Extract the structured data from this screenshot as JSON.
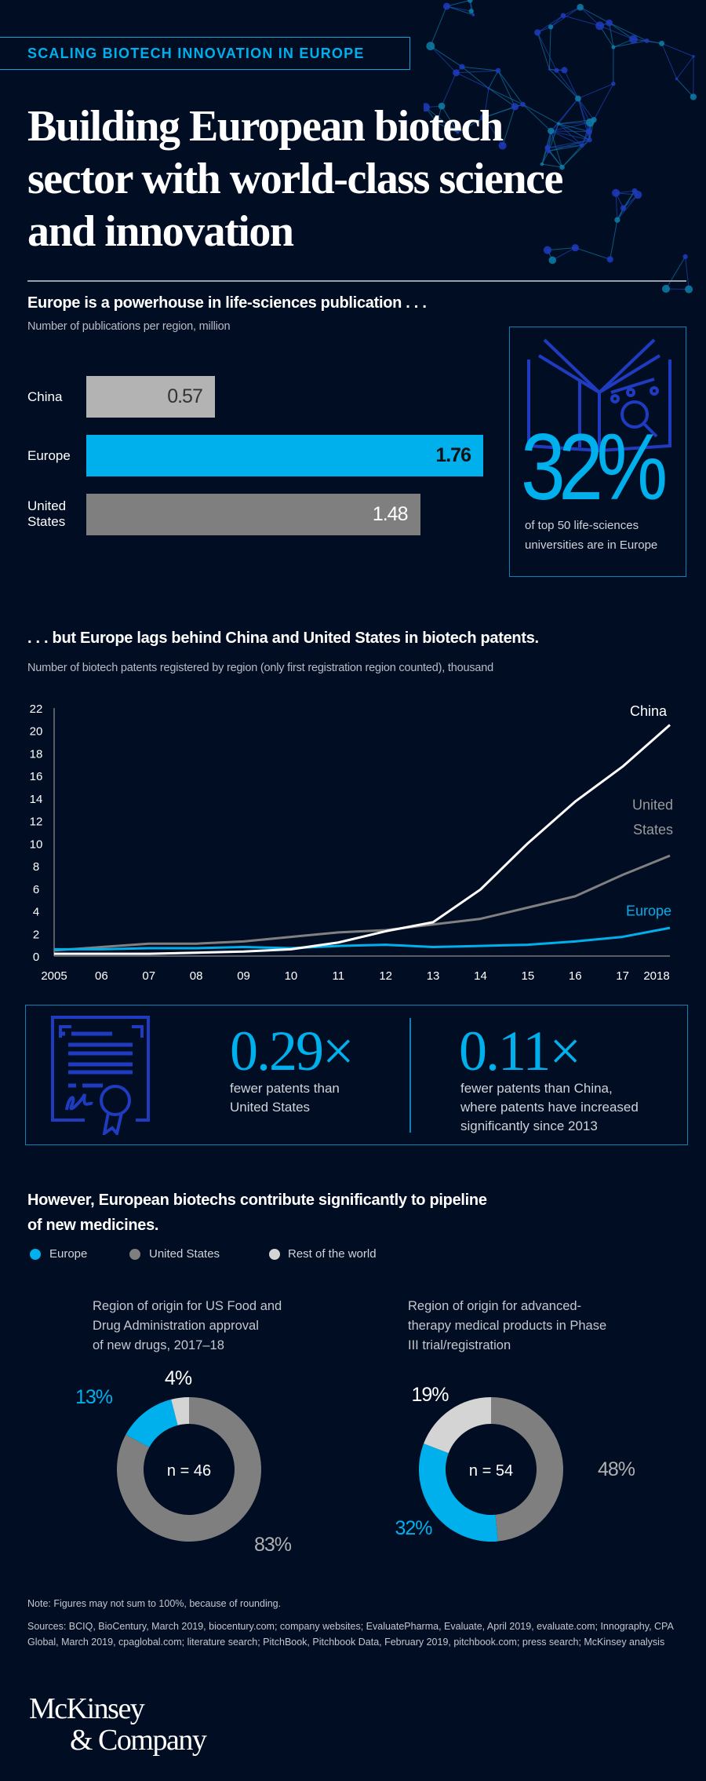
{
  "header": {
    "tag": "SCALING BIOTECH INNOVATION IN EUROPE",
    "title_lines": [
      "Building European biotech",
      "sector with world-class science",
      "and innovation"
    ]
  },
  "publications": {
    "heading": "Europe is a powerhouse in life-sciences publication . . .",
    "subheading": "Number of publications per region, million",
    "stat_value": "32%",
    "stat_caption_lines": [
      "of top 50 life-sciences",
      "universities are in Europe"
    ],
    "stat_icon": "book-research-icon"
  },
  "patents": {
    "heading": ". . . but Europe lags behind China and United States in biotech patents.",
    "subheading": "Number of biotech patents registered by region (only first registration region counted), thousand"
  },
  "patent_stats": {
    "icon": "certificate-icon",
    "items": [
      {
        "value": "0.29×",
        "caption_lines": [
          "fewer patents than",
          "United States"
        ]
      },
      {
        "value": "0.11×",
        "caption_lines": [
          "fewer patents than China,",
          "where patents have increased",
          "significantly since 2013"
        ]
      }
    ]
  },
  "pipeline": {
    "heading_lines": [
      "However, European biotechs contribute significantly to pipeline",
      "of new medicines."
    ],
    "legend": [
      {
        "label": "Europe",
        "color": "#00b0ec"
      },
      {
        "label": "United States",
        "color": "#7f7f7f"
      },
      {
        "label": "Rest of the world",
        "color": "#d4d4d4"
      }
    ]
  },
  "footer": {
    "note": "Note: Figures may not sum to 100%, because of rounding.",
    "sources": "Sources: BCIQ, BioCentury, March 2019, biocentury.com; company websites; EvaluatePharma, Evaluate, April 2019, evaluate.com; Innography, CPA Global, March 2019, cpaglobal.com; literature search; PitchBook, Pitchbook Data, February 2019, pitchbook.com; press search; McKinsey analysis",
    "logo_lines": [
      "McKinsey",
      "& Company"
    ]
  },
  "colors": {
    "background": "#010d23",
    "accent": "#00b0ec",
    "us": "#7f7f7f",
    "china_bar": "#b3b3b3",
    "icon": "#1f3bbf"
  },
  "chart_data": [
    {
      "type": "bar",
      "orientation": "horizontal",
      "categories": [
        "China",
        "Europe",
        "United States"
      ],
      "values": [
        0.57,
        1.76,
        1.48
      ],
      "value_labels": [
        "0.57",
        "1.76",
        "1.48"
      ],
      "colors": [
        "#b3b3b3",
        "#00b0ec",
        "#7f7f7f"
      ]
    },
    {
      "type": "line",
      "x": [
        "2005",
        "06",
        "07",
        "08",
        "09",
        "10",
        "11",
        "12",
        "13",
        "14",
        "15",
        "16",
        "17",
        "2018"
      ],
      "ylim": [
        0,
        22
      ],
      "yticks": [
        0,
        2,
        4,
        6,
        8,
        10,
        12,
        14,
        16,
        18,
        20,
        22
      ],
      "grid": false,
      "series": [
        {
          "name": "China",
          "color": "#ffffff",
          "values": [
            0.2,
            0.2,
            0.2,
            0.3,
            0.4,
            0.6,
            1.2,
            2.2,
            3.0,
            5.9,
            10.0,
            13.7,
            16.8,
            20.5
          ]
        },
        {
          "name": "United States",
          "label_lines": [
            "United",
            "States"
          ],
          "color": "#808080",
          "values": [
            0.5,
            0.8,
            1.1,
            1.1,
            1.3,
            1.7,
            2.1,
            2.3,
            2.8,
            3.3,
            4.3,
            5.3,
            7.2,
            8.9
          ]
        },
        {
          "name": "Europe",
          "color": "#00b0ec",
          "values": [
            0.6,
            0.6,
            0.7,
            0.7,
            0.8,
            0.7,
            0.9,
            1.0,
            0.8,
            0.9,
            1.0,
            1.3,
            1.7,
            2.5
          ]
        }
      ]
    },
    {
      "type": "pie",
      "variant": "donut",
      "title_lines": [
        "Region of origin for US Food and",
        "Drug Administration approval",
        "of new drugs, 2017–18"
      ],
      "center_label": "n = 46",
      "slices": [
        {
          "name": "United States",
          "value": 83,
          "label": "83%"
        },
        {
          "name": "Europe",
          "value": 13,
          "label": "13%"
        },
        {
          "name": "Rest of the world",
          "value": 4,
          "label": "4%"
        }
      ]
    },
    {
      "type": "pie",
      "variant": "donut",
      "title_lines": [
        "Region of origin for advanced-",
        "therapy medical products in Phase",
        "III trial/registration"
      ],
      "center_label": "n = 54",
      "slices": [
        {
          "name": "United States",
          "value": 48,
          "label": "48%"
        },
        {
          "name": "Europe",
          "value": 32,
          "label": "32%"
        },
        {
          "name": "Rest of the world",
          "value": 19,
          "label": "19%"
        }
      ]
    }
  ]
}
